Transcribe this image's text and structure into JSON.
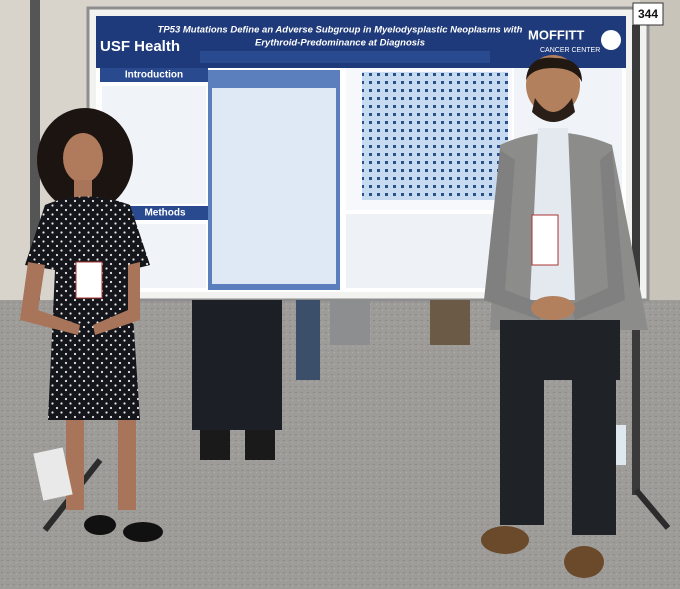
{
  "poster_number": "344",
  "poster": {
    "title_line1": "TP53 Mutations Define an Adverse Subgroup in Myelodysplastic Neoplasms with",
    "title_line2": "Erythroid-Predominance at Diagnosis",
    "left_logo": "USF Health",
    "right_logo": "MOFFITT",
    "right_logo_sub": "CANCER CENTER",
    "sections": [
      "Introduction",
      "Methods"
    ]
  }
}
